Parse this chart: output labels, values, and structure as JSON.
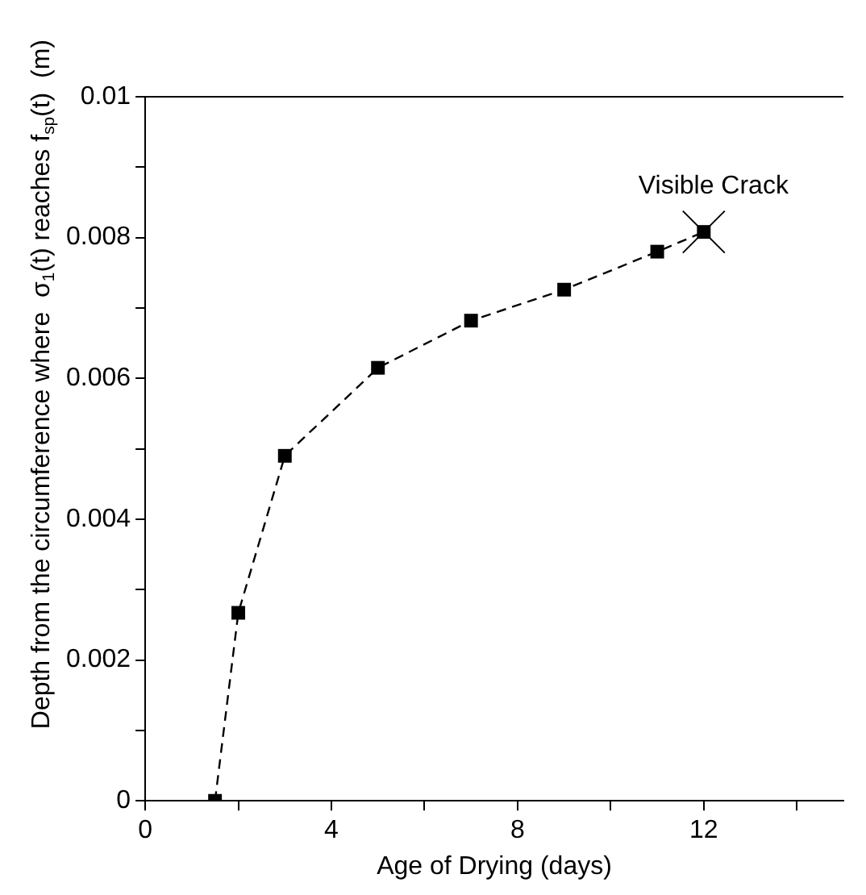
{
  "chart_data": {
    "type": "line",
    "xlabel": "Age of Drying (days)",
    "ylabel": "Depth from the circumference where  σ$_{1}$(t) reaches f$_{sp}$(t)  (m)",
    "x": [
      1.5,
      2,
      3,
      5,
      7,
      9,
      11,
      12
    ],
    "series": [
      {
        "color": "#000000",
        "values": [
          0,
          0.00267,
          0.0049,
          0.00615,
          0.00682,
          0.00726,
          0.0078,
          0.00808
        ]
      }
    ],
    "marker": "square",
    "line_style": "dashed",
    "grid": false,
    "legend": false,
    "xlim": [
      0,
      15
    ],
    "xticks": [
      0,
      {
        "value": 2,
        "label": null
      },
      4,
      {
        "value": 6,
        "label": null
      },
      8,
      {
        "value": 10,
        "label": null
      },
      12,
      {
        "value": 14,
        "label": null
      }
    ],
    "ylim": [
      0,
      0.01
    ],
    "yticks": [
      0,
      {
        "value": 0.001,
        "label": null
      },
      0.002,
      {
        "value": 0.003,
        "label": null
      },
      0.004,
      {
        "value": 0.005,
        "label": null
      },
      0.006,
      {
        "value": 0.007,
        "label": null
      },
      0.008,
      {
        "value": 0.009,
        "label": null
      },
      0.01
    ],
    "annotations": [
      {
        "text": "Visible Crack",
        "x": 12,
        "y": 0.00808
      }
    ]
  }
}
